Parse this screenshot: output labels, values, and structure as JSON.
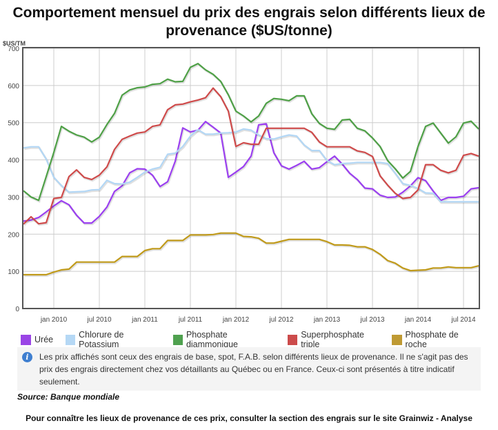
{
  "chart_data": {
    "type": "line",
    "title": "Comportement mensuel du prix des engrais selon différents lieux de provenance ($US/tonne)",
    "ylabel": "$US/TM",
    "ylim": [
      0,
      700
    ],
    "yticks": [
      0,
      100,
      200,
      300,
      400,
      500,
      600,
      700
    ],
    "grid": true,
    "legend_position": "bottom",
    "x": [
      "2009-09",
      "2009-10",
      "2009-11",
      "2009-12",
      "2010-01",
      "2010-02",
      "2010-03",
      "2010-04",
      "2010-05",
      "2010-06",
      "2010-07",
      "2010-08",
      "2010-09",
      "2010-10",
      "2010-11",
      "2010-12",
      "2011-01",
      "2011-02",
      "2011-03",
      "2011-04",
      "2011-05",
      "2011-06",
      "2011-07",
      "2011-08",
      "2011-09",
      "2011-10",
      "2011-11",
      "2011-12",
      "2012-01",
      "2012-02",
      "2012-03",
      "2012-04",
      "2012-05",
      "2012-06",
      "2012-07",
      "2012-08",
      "2012-09",
      "2012-10",
      "2012-11",
      "2012-12",
      "2013-01",
      "2013-02",
      "2013-03",
      "2013-04",
      "2013-05",
      "2013-06",
      "2013-07",
      "2013-08",
      "2013-09",
      "2013-10",
      "2013-11",
      "2013-12",
      "2014-01",
      "2014-02",
      "2014-03",
      "2014-04",
      "2014-05",
      "2014-06",
      "2014-07",
      "2014-08",
      "2014-09"
    ],
    "xtick_labels": [
      {
        "x": "2010-01",
        "label": "jan 2010"
      },
      {
        "x": "2010-07",
        "label": "jul 2010"
      },
      {
        "x": "2011-01",
        "label": "jan 2011"
      },
      {
        "x": "2011-07",
        "label": "jul 2011"
      },
      {
        "x": "2012-01",
        "label": "jan 2012"
      },
      {
        "x": "2012-07",
        "label": "jul 2012"
      },
      {
        "x": "2013-01",
        "label": "jan 2013"
      },
      {
        "x": "2013-07",
        "label": "jul 2013"
      },
      {
        "x": "2014-01",
        "label": "jan 2014"
      },
      {
        "x": "2014-07",
        "label": "jul 2014"
      }
    ],
    "series": [
      {
        "name": "Urée",
        "color": "#9b3ff0",
        "legend_color": "#9a45e6",
        "values": [
          235,
          238,
          245,
          260,
          276,
          290,
          279,
          251,
          230,
          230,
          248,
          273,
          315,
          330,
          365,
          376,
          375,
          359,
          328,
          341,
          396,
          486,
          475,
          480,
          503,
          488,
          472,
          353,
          367,
          382,
          410,
          494,
          497,
          419,
          384,
          375,
          385,
          396,
          375,
          379,
          395,
          410,
          389,
          364,
          347,
          324,
          322,
          305,
          299,
          300,
          313,
          330,
          352,
          344,
          316,
          291,
          299,
          299,
          302,
          322,
          325
        ]
      },
      {
        "name": "Chlorure de Potassium",
        "color": "#b3d7f5",
        "legend_color": "#b5d8f5",
        "values": [
          432,
          435,
          435,
          402,
          353,
          331,
          313,
          314,
          315,
          319,
          320,
          345,
          336,
          335,
          340,
          353,
          367,
          375,
          380,
          415,
          418,
          436,
          464,
          481,
          469,
          469,
          472,
          473,
          475,
          483,
          480,
          467,
          457,
          456,
          462,
          467,
          464,
          440,
          425,
          425,
          398,
          387,
          390,
          391,
          393,
          393,
          393,
          393,
          390,
          364,
          336,
          331,
          323,
          311,
          310,
          287,
          287,
          287,
          287,
          287,
          287
        ]
      },
      {
        "name": "Phosphate diammonique",
        "color": "#4ea046",
        "legend_color": "#4fa14f",
        "values": [
          317,
          300,
          291,
          355,
          420,
          490,
          477,
          467,
          461,
          448,
          461,
          495,
          525,
          574,
          588,
          594,
          596,
          603,
          605,
          617,
          610,
          611,
          649,
          659,
          642,
          630,
          611,
          575,
          531,
          518,
          502,
          518,
          552,
          565,
          563,
          559,
          572,
          572,
          524,
          498,
          485,
          482,
          507,
          509,
          485,
          478,
          459,
          436,
          398,
          376,
          351,
          369,
          436,
          490,
          499,
          472,
          445,
          462,
          499,
          504,
          483
        ]
      },
      {
        "name": "Superphosphate triple",
        "color": "#cf4a4a",
        "legend_color": "#cc4b4b",
        "values": [
          227,
          247,
          228,
          231,
          296,
          299,
          355,
          373,
          353,
          347,
          359,
          381,
          428,
          455,
          464,
          472,
          475,
          490,
          494,
          535,
          548,
          550,
          556,
          561,
          567,
          593,
          570,
          531,
          436,
          446,
          442,
          442,
          485,
          485,
          485,
          485,
          485,
          485,
          474,
          448,
          435,
          435,
          435,
          435,
          424,
          420,
          409,
          357,
          332,
          310,
          296,
          299,
          319,
          387,
          387,
          372,
          365,
          372,
          412,
          417,
          410
        ]
      },
      {
        "name": "Phosphate de roche",
        "color": "#c09a1a",
        "legend_color": "#bf9a33",
        "values": [
          91,
          91,
          91,
          91,
          98,
          104,
          106,
          125,
          125,
          125,
          125,
          125,
          125,
          140,
          140,
          140,
          156,
          161,
          161,
          183,
          183,
          183,
          198,
          198,
          198,
          199,
          203,
          203,
          203,
          194,
          193,
          189,
          176,
          176,
          181,
          186,
          186,
          186,
          186,
          186,
          180,
          171,
          171,
          170,
          166,
          166,
          159,
          146,
          129,
          122,
          109,
          102,
          103,
          104,
          109,
          109,
          112,
          110,
          110,
          110,
          115
        ]
      }
    ]
  },
  "info_icon": "info-circle-icon",
  "info_text": "Les prix affichés sont ceux des engrais de base, spot, F.A.B. selon différents lieux de provenance. Il ne s'agit pas des prix des engrais directement chez vos détaillants au Québec ou en France. Ceux-ci sont présentés à titre indicatif seulement.",
  "source": "Source: Banque mondiale",
  "footer": "Pour connaître les lieux de provenance de ces prix, consulter la section des engrais sur le site Grainwiz - Analyse"
}
